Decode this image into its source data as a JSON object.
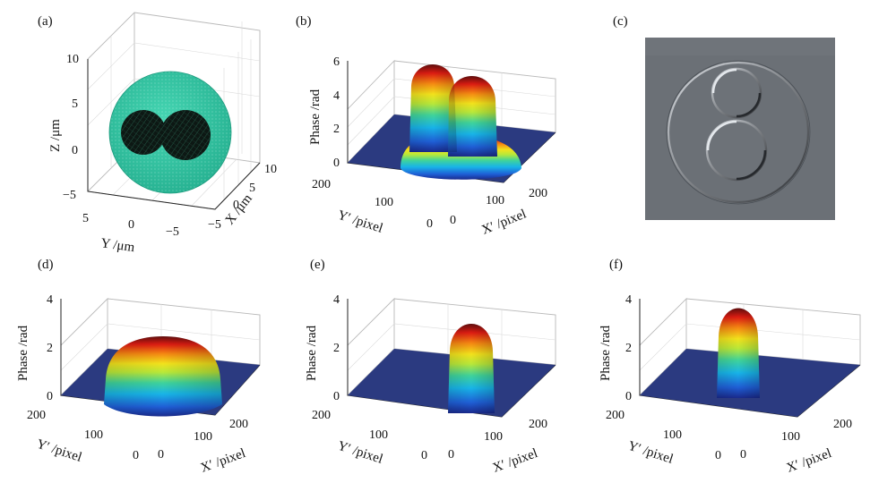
{
  "figure": {
    "panels": {
      "a": {
        "label": "(a)"
      },
      "b": {
        "label": "(b)"
      },
      "c": {
        "label": "(c)"
      },
      "d": {
        "label": "(d)"
      },
      "e": {
        "label": "(e)"
      },
      "f": {
        "label": "(f)"
      }
    },
    "colors": {
      "sphere": "#2fc4a2",
      "sphere_dark": "#1e9a80",
      "inclusion": "#0c1713",
      "floor": "#2b3a80",
      "phase_image_bg": "#6b7076"
    }
  },
  "chart_data": [
    {
      "panel": "a",
      "type": "scatter",
      "title": "",
      "description_series": [
        {
          "name": "outer sphere",
          "center_um": [
            0,
            0,
            0
          ],
          "radius_um": 6
        },
        {
          "name": "inclusion 1",
          "center_um": [
            0,
            -2.6,
            0.6
          ],
          "radius_um": 2.6
        },
        {
          "name": "inclusion 2",
          "center_um": [
            0,
            2.6,
            0.6
          ],
          "radius_um": 2.6
        }
      ],
      "zlabel": "Z /μm",
      "ylabel": "Y /μm",
      "xlabel": "X /μm",
      "zticks": [
        "10",
        "5",
        "0",
        "−5"
      ],
      "yticks": [
        "5",
        "0",
        "−5"
      ],
      "xticks": [
        "10",
        "5",
        "0",
        "−5"
      ],
      "zlim": [
        -6,
        10
      ],
      "ylim": [
        -6,
        6
      ],
      "xlim": [
        -6,
        12
      ]
    },
    {
      "panel": "b",
      "type": "surface",
      "zlabel": "Phase /rad",
      "xlabel": "X′ /pixel",
      "ylabel": "Y′ /pixel",
      "zticks": [
        "6",
        "4",
        "2",
        "0"
      ],
      "yticks": [
        "200",
        "100",
        "0"
      ],
      "xticks": [
        "0",
        "100",
        "200"
      ],
      "zlim": [
        0,
        6
      ],
      "xlim": [
        0,
        256
      ],
      "ylim": [
        0,
        256
      ],
      "components": [
        {
          "name": "cell",
          "cx": 128,
          "cy": 128,
          "radius": 75,
          "peak": 1.6
        },
        {
          "name": "nucleus 1",
          "cx": 105,
          "cy": 128,
          "radius": 28,
          "peak": 3.9
        },
        {
          "name": "nucleus 2",
          "cx": 155,
          "cy": 128,
          "radius": 28,
          "peak": 3.5
        }
      ],
      "max_phase": 5.6
    },
    {
      "panel": "c",
      "type": "image",
      "description": "Phase gradient image: outer cell circle containing two inner circles"
    },
    {
      "panel": "d",
      "type": "surface",
      "zlabel": "Phase /rad",
      "xlabel": "X′ /pixel",
      "ylabel": "Y′ /pixel",
      "zticks": [
        "4",
        "2",
        "0"
      ],
      "yticks": [
        "200",
        "100",
        "0"
      ],
      "xticks": [
        "0",
        "100",
        "200"
      ],
      "zlim": [
        0,
        4
      ],
      "xlim": [
        0,
        256
      ],
      "ylim": [
        0,
        256
      ],
      "components": [
        {
          "name": "cell",
          "cx": 128,
          "cy": 128,
          "radius": 85,
          "peak": 2.3
        }
      ],
      "max_phase": 2.3
    },
    {
      "panel": "e",
      "type": "surface",
      "zlabel": "Phase /rad",
      "xlabel": "X′ /pixel",
      "ylabel": "Y′ /pixel",
      "zticks": [
        "4",
        "2",
        "0"
      ],
      "yticks": [
        "200",
        "100",
        "0"
      ],
      "xticks": [
        "0",
        "100",
        "200"
      ],
      "zlim": [
        0,
        4
      ],
      "xlim": [
        0,
        256
      ],
      "ylim": [
        0,
        256
      ],
      "components": [
        {
          "name": "nucleus",
          "cx": 128,
          "cy": 128,
          "radius": 28,
          "peak": 3.0
        }
      ],
      "max_phase": 3.0
    },
    {
      "panel": "f",
      "type": "surface",
      "zlabel": "Phase /rad",
      "xlabel": "X′ /pixel",
      "ylabel": "Y′ /pixel",
      "zticks": [
        "4",
        "2",
        "0"
      ],
      "yticks": [
        "200",
        "100",
        "0"
      ],
      "xticks": [
        "0",
        "100",
        "200"
      ],
      "zlim": [
        0,
        4
      ],
      "xlim": [
        0,
        256
      ],
      "ylim": [
        0,
        256
      ],
      "components": [
        {
          "name": "nucleus",
          "cx": 128,
          "cy": 128,
          "radius": 26,
          "peak": 3.6
        }
      ],
      "max_phase": 3.6
    }
  ]
}
